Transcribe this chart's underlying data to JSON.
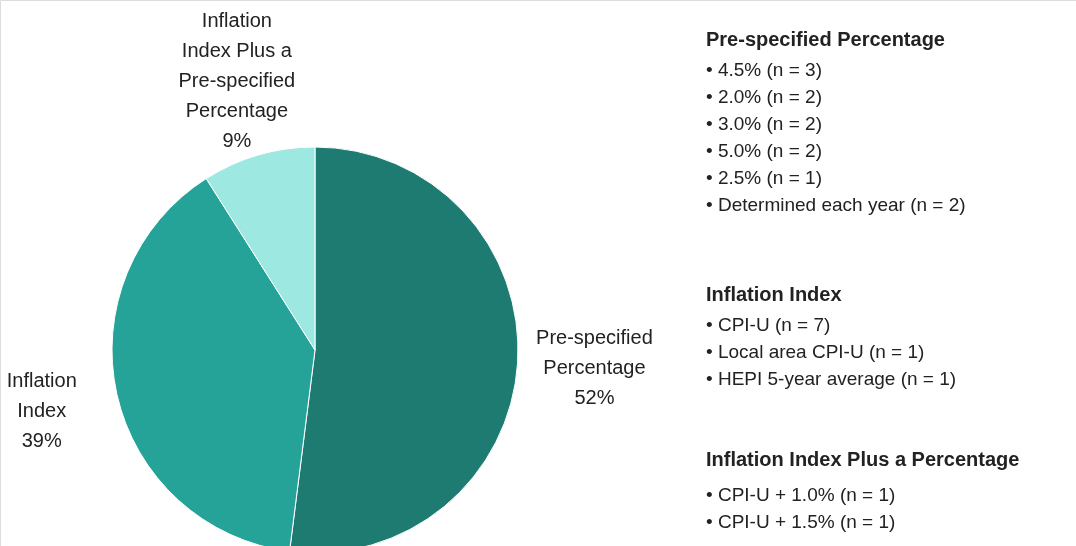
{
  "chart_data": {
    "type": "pie",
    "categories": [
      "Pre-specified Percentage",
      "Inflation Index",
      "Inflation Index Plus a Pre-specified Percentage"
    ],
    "values": [
      52,
      39,
      9
    ],
    "value_labels": [
      "52%",
      "39%",
      "9%"
    ],
    "colors": [
      "#1e7b72",
      "#26a398",
      "#9ee8e2"
    ],
    "annotations": [
      "Pre-specified Percentage",
      "• 4.5% (n = 3)",
      "• 2.0% (n = 2)",
      "• 3.0% (n = 2)",
      "• 5.0% (n = 2)",
      "• 2.5% (n = 1)",
      "• Determined each year (n = 2)",
      "Inflation Index",
      "• CPI-U (n = 7)",
      "• Local area CPI-U (n = 1)",
      "• HEPI 5-year average (n = 1)",
      "Inflation Index Plus a Percentage",
      "• CPI-U + 1.0% (n = 1)",
      "• CPI-U + 1.5% (n = 1)"
    ]
  }
}
